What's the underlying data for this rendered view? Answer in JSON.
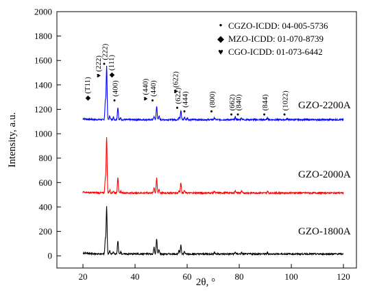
{
  "chart_data": {
    "type": "line",
    "xlabel": "2θ, °",
    "ylabel": "Intensity, a.u.",
    "xlim": [
      10,
      125
    ],
    "ylim": [
      -100,
      2000
    ],
    "xticks": [
      20,
      40,
      60,
      80,
      100,
      120
    ],
    "yticks": [
      0,
      200,
      400,
      600,
      800,
      1000,
      1200,
      1400,
      1600,
      1800,
      2000
    ],
    "grid": false,
    "legend": {
      "placement": "top-right",
      "entries": [
        {
          "marker": "•",
          "text": "CGZO-ICDD: 04-005-5736"
        },
        {
          "marker": "◆",
          "text": "MZO-ICDD: 01-070-8739"
        },
        {
          "marker": "♥",
          "text": "CGO-ICDD: 01-073-6442"
        }
      ]
    },
    "series": [
      {
        "name": "GZO-2200A",
        "color": "#0000ff",
        "baseline": 1115,
        "peaks": [
          [
            28.6,
            150
          ],
          [
            29.1,
            440
          ],
          [
            30.3,
            30
          ],
          [
            31.7,
            20
          ],
          [
            33.4,
            100
          ],
          [
            34.5,
            15
          ],
          [
            47.3,
            25
          ],
          [
            48.3,
            110
          ],
          [
            49.2,
            30
          ],
          [
            56.9,
            25
          ],
          [
            57.6,
            75
          ],
          [
            59.0,
            20
          ],
          [
            60.1,
            15
          ],
          [
            70.5,
            15
          ],
          [
            78.5,
            20
          ],
          [
            80.9,
            15
          ],
          [
            90.9,
            15
          ],
          [
            98.5,
            10
          ]
        ]
      },
      {
        "name": "GZO-2000A",
        "color": "#ff0000",
        "baseline": 515,
        "peaks": [
          [
            28.6,
            120
          ],
          [
            29.1,
            460
          ],
          [
            30.3,
            25
          ],
          [
            31.7,
            15
          ],
          [
            33.4,
            130
          ],
          [
            34.5,
            15
          ],
          [
            47.3,
            45
          ],
          [
            48.3,
            120
          ],
          [
            49.2,
            30
          ],
          [
            56.9,
            20
          ],
          [
            57.6,
            85
          ],
          [
            59.0,
            20
          ],
          [
            70.5,
            15
          ],
          [
            78.5,
            20
          ],
          [
            80.9,
            15
          ],
          [
            90.9,
            15
          ]
        ]
      },
      {
        "name": "GZO-1800A",
        "color": "#000000",
        "baseline": 15,
        "peaks": [
          [
            28.6,
            120
          ],
          [
            29.1,
            390
          ],
          [
            30.3,
            25
          ],
          [
            31.7,
            15
          ],
          [
            33.4,
            110
          ],
          [
            34.5,
            20
          ],
          [
            47.3,
            55
          ],
          [
            48.3,
            125
          ],
          [
            49.2,
            35
          ],
          [
            56.9,
            25
          ],
          [
            57.6,
            75
          ],
          [
            59.0,
            20
          ],
          [
            70.5,
            15
          ],
          [
            78.5,
            15
          ],
          [
            80.9,
            10
          ],
          [
            90.9,
            10
          ]
        ]
      }
    ],
    "peak_labels": [
      {
        "marker": "◆",
        "text": "(Ƭ11)",
        "x": 22.6,
        "y": 1270
      },
      {
        "marker": "♥",
        "text": "(222)",
        "x": 26.8,
        "y": 1460
      },
      {
        "marker": "•",
        "text": "(222)",
        "x": 29.3,
        "y": 1560
      },
      {
        "marker": "◆",
        "text": "(111)",
        "x": 31.8,
        "y": 1460
      },
      {
        "marker": "•",
        "text": "(400)",
        "x": 33.3,
        "y": 1260
      },
      {
        "marker": "♥",
        "text": "(440)",
        "x": 44.9,
        "y": 1270
      },
      {
        "marker": "•",
        "text": "(440)",
        "x": 47.9,
        "y": 1260
      },
      {
        "marker": "♥",
        "text": "(622)",
        "x": 56.4,
        "y": 1330
      },
      {
        "marker": "•",
        "text": "(622)",
        "x": 57.4,
        "y": 1200
      },
      {
        "marker": "•",
        "text": "(444)",
        "x": 60.1,
        "y": 1170
      },
      {
        "marker": "•",
        "text": "(800)",
        "x": 70.5,
        "y": 1170
      },
      {
        "marker": "•",
        "text": "(662)",
        "x": 78.2,
        "y": 1145
      },
      {
        "marker": "•",
        "text": "(840)",
        "x": 80.7,
        "y": 1145
      },
      {
        "marker": "•",
        "text": "(844)",
        "x": 90.8,
        "y": 1145
      },
      {
        "marker": "•",
        "text": "(1022)",
        "x": 98.5,
        "y": 1145
      }
    ]
  }
}
